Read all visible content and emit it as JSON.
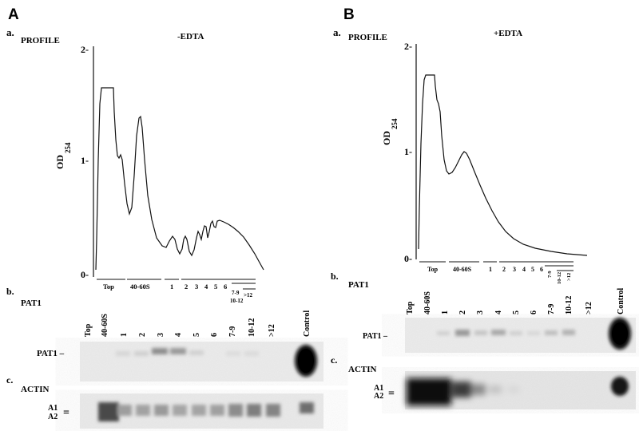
{
  "panels": [
    {
      "letter": "A",
      "profile_sub": "a.",
      "profile_label": "PROFILE",
      "condition": "-EDTA",
      "ylabel_main": "OD",
      "ylabel_sub": "254",
      "yticks": [
        "2-",
        "1-",
        "0-"
      ],
      "fraction_labels": [
        "Top",
        "40-60S",
        "1",
        "2",
        "3",
        "4",
        "5",
        "6",
        "7-9",
        "10-12",
        ">12"
      ],
      "blot_b_sub": "b.",
      "blot_b_title": "PAT1",
      "lane_labels": [
        "Top",
        "40-60S",
        "1",
        "2",
        "3",
        "4",
        "5",
        "6",
        "7-9",
        "10-12",
        ">12",
        "Control"
      ],
      "pat1_marker": "PAT1 –",
      "blot_c_sub": "c.",
      "blot_c_title": "ACTIN",
      "actin_marker_1": "A1",
      "actin_marker_2": "A2",
      "actin_dash": "="
    },
    {
      "letter": "B",
      "profile_sub": "a.",
      "profile_label": "PROFILE",
      "condition": "+EDTA",
      "ylabel_main": "OD",
      "ylabel_sub": "254",
      "yticks": [
        "2-",
        "1-",
        "0-"
      ],
      "fraction_labels": [
        "Top",
        "40-60S",
        "1",
        "2",
        "3",
        "4",
        "5",
        "6",
        "7-9",
        "10-12",
        ">12"
      ],
      "blot_b_sub": "b.",
      "blot_b_title": "PAT1",
      "lane_labels": [
        "Top",
        "40-60S",
        "1",
        "2",
        "3",
        "4",
        "5",
        "6",
        "7-9",
        "10-12",
        ">12",
        "Control"
      ],
      "pat1_marker": "PAT1 –",
      "blot_c_sub": "c.",
      "blot_c_title": "ACTIN",
      "actin_marker_1": "A1",
      "actin_marker_2": "A2",
      "actin_dash": "="
    }
  ]
}
